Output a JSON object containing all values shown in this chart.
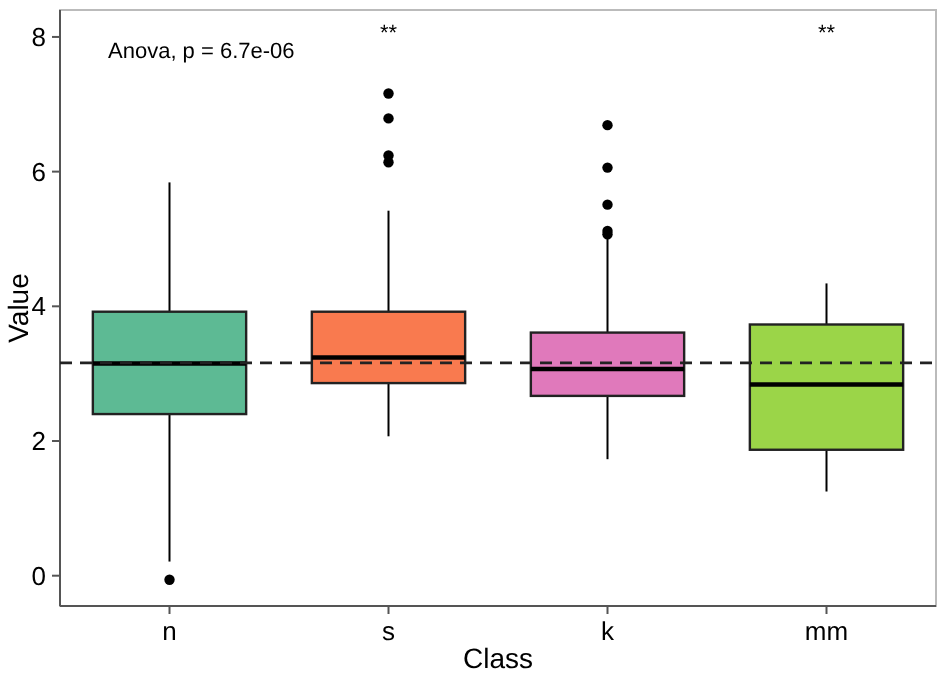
{
  "chart_data": {
    "type": "box",
    "xlabel": "Class",
    "ylabel": "Value",
    "categories": [
      "n",
      "s",
      "k",
      "mm"
    ],
    "colors": [
      "#5dba94",
      "#f97a4f",
      "#e079bb",
      "#9bd548"
    ],
    "boxes": [
      {
        "low": 0.21,
        "q1": 2.4,
        "median": 3.15,
        "q3": 3.92,
        "high": 5.84,
        "outliers": [
          -0.06
        ]
      },
      {
        "low": 2.07,
        "q1": 2.86,
        "median": 3.24,
        "q3": 3.92,
        "high": 5.42,
        "outliers": [
          7.16,
          6.79,
          6.24,
          6.14
        ]
      },
      {
        "low": 1.73,
        "q1": 2.67,
        "median": 3.07,
        "q3": 3.61,
        "high": 5.0,
        "outliers": [
          6.69,
          6.06,
          5.51,
          5.12,
          5.07
        ]
      },
      {
        "low": 1.25,
        "q1": 1.87,
        "median": 2.84,
        "q3": 3.73,
        "high": 4.34
      }
    ],
    "ylim": [
      -0.45,
      8.4
    ],
    "yticks": [
      0,
      2,
      4,
      6,
      8
    ],
    "ref_lines": [
      {
        "axis": "y",
        "value": 3.16,
        "line_style": "dashed"
      }
    ],
    "annotations": [
      "Anova, p = 6.7e-06",
      "**",
      "**"
    ]
  }
}
